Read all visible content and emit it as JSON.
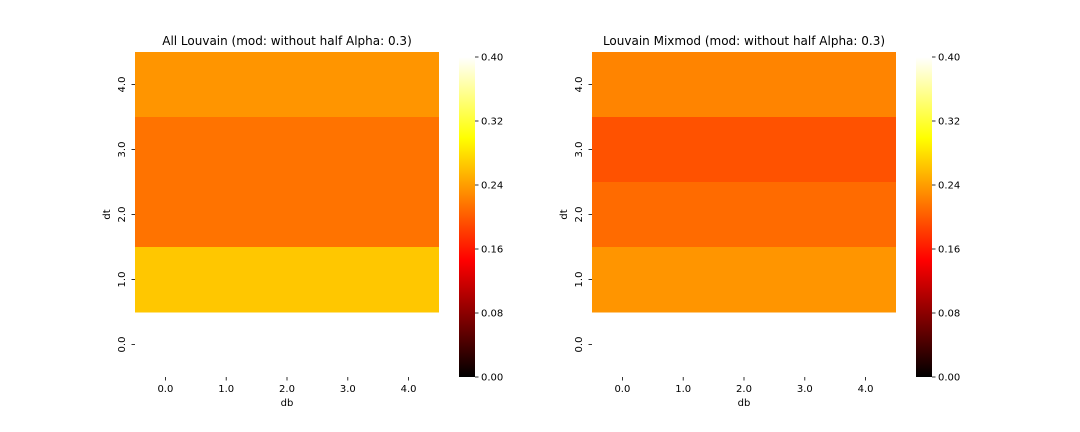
{
  "chart_data": [
    {
      "type": "heatmap",
      "title": "All Louvain (mod:  without half Alpha: 0.3)",
      "xlabel": "db",
      "ylabel": "dt",
      "x_ticks": [
        "0.0",
        "1.0",
        "2.0",
        "3.0",
        "4.0"
      ],
      "y_ticks": [
        "4.0",
        "3.0",
        "2.0",
        "1.0",
        "0.0"
      ],
      "rows": [
        {
          "dt": "4.0",
          "value": 0.235
        },
        {
          "dt": "3.0",
          "value": 0.215
        },
        {
          "dt": "2.0",
          "value": 0.215
        },
        {
          "dt": "1.0",
          "value": 0.265
        },
        {
          "dt": "0.0",
          "value": null
        }
      ],
      "colormap": "hot",
      "vmin": 0.0,
      "vmax": 0.4,
      "colorbar_ticks": [
        "0.00",
        "0.08",
        "0.16",
        "0.24",
        "0.32",
        "0.40"
      ]
    },
    {
      "type": "heatmap",
      "title": "Louvain Mixmod (mod:  without half Alpha: 0.3)",
      "xlabel": "db",
      "ylabel": "dt",
      "x_ticks": [
        "0.0",
        "1.0",
        "2.0",
        "3.0",
        "4.0"
      ],
      "y_ticks": [
        "4.0",
        "3.0",
        "2.0",
        "1.0",
        "0.0"
      ],
      "rows": [
        {
          "dt": "4.0",
          "value": 0.225
        },
        {
          "dt": "3.0",
          "value": 0.195
        },
        {
          "dt": "2.0",
          "value": 0.21
        },
        {
          "dt": "1.0",
          "value": 0.235
        },
        {
          "dt": "0.0",
          "value": null
        }
      ],
      "colormap": "hot",
      "vmin": 0.0,
      "vmax": 0.4,
      "colorbar_ticks": [
        "0.00",
        "0.08",
        "0.16",
        "0.24",
        "0.32",
        "0.40"
      ]
    }
  ]
}
